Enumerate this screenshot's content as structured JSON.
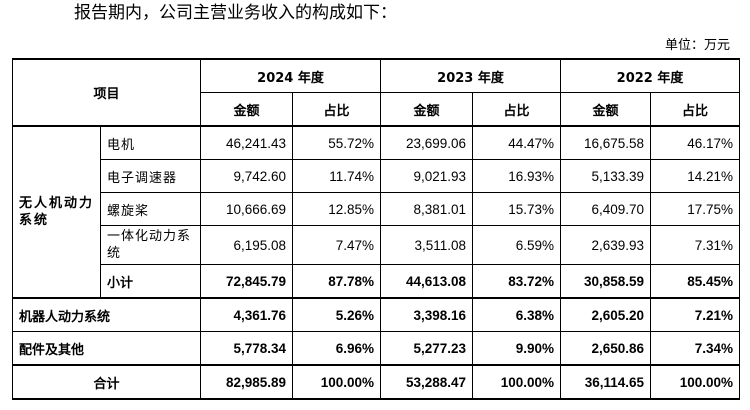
{
  "intro": "报告期内，公司主营业务收入的构成如下：",
  "unit": "单位：万元",
  "header": {
    "item": "项目",
    "years": [
      "2024 年度",
      "2023 年度",
      "2022 年度"
    ],
    "amount": "金额",
    "ratio": "占比"
  },
  "group": {
    "name": "无人机动力系统",
    "rows": [
      {
        "label": "电机",
        "v": [
          "46,241.43",
          "55.72%",
          "23,699.06",
          "44.47%",
          "16,675.58",
          "46.17%"
        ]
      },
      {
        "label": "电子调速器",
        "v": [
          "9,742.60",
          "11.74%",
          "9,021.93",
          "16.93%",
          "5,133.39",
          "14.21%"
        ]
      },
      {
        "label": "螺旋桨",
        "v": [
          "10,666.69",
          "12.85%",
          "8,381.01",
          "15.73%",
          "6,409.70",
          "17.75%"
        ]
      },
      {
        "label": "一体化动力系统",
        "v": [
          "6,195.08",
          "7.47%",
          "3,511.08",
          "6.59%",
          "2,639.93",
          "7.31%"
        ]
      }
    ],
    "subtotal": {
      "label": "小计",
      "v": [
        "72,845.79",
        "87.78%",
        "44,613.08",
        "83.72%",
        "30,858.59",
        "85.45%"
      ]
    }
  },
  "others": [
    {
      "label": "机器人动力系统",
      "v": [
        "4,361.76",
        "5.26%",
        "3,398.16",
        "6.38%",
        "2,605.20",
        "7.21%"
      ]
    },
    {
      "label": "配件及其他",
      "v": [
        "5,778.34",
        "6.96%",
        "5,277.23",
        "9.90%",
        "2,650.86",
        "7.34%"
      ]
    }
  ],
  "total": {
    "label": "合计",
    "v": [
      "82,985.89",
      "100.00%",
      "53,288.47",
      "100.00%",
      "36,114.65",
      "100.00%"
    ]
  }
}
